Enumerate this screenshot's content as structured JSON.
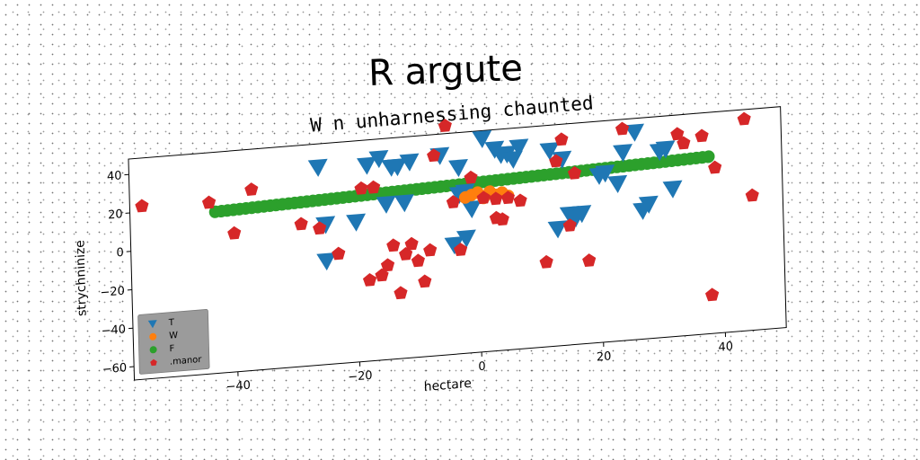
{
  "chart_data": {
    "type": "scatter",
    "title": "R argute",
    "subtitle": "W n unharnessing chaunted",
    "xlabel": "hectare",
    "ylabel": "strychninize",
    "xlim": [
      -57,
      50
    ],
    "ylim": [
      -67,
      48
    ],
    "xticks": [
      -40,
      -20,
      0,
      20,
      40
    ],
    "yticks": [
      40,
      20,
      0,
      -20,
      -40,
      -60
    ],
    "grid": false,
    "legend_position": "lower-left",
    "series": [
      {
        "name": "T",
        "marker": "triangle-down",
        "color": "#1f77b4",
        "points": [
          [
            -26,
            36
          ],
          [
            -25,
            6
          ],
          [
            -25,
            -13
          ],
          [
            -20,
            6
          ],
          [
            -18,
            35
          ],
          [
            -16,
            38
          ],
          [
            -15,
            14
          ],
          [
            -14,
            33
          ],
          [
            -13,
            33
          ],
          [
            -12,
            14
          ],
          [
            -11,
            35
          ],
          [
            -6,
            37
          ],
          [
            -4,
            -10
          ],
          [
            -3,
            16
          ],
          [
            -3,
            30
          ],
          [
            -2,
            17
          ],
          [
            -2,
            -7
          ],
          [
            -1,
            8
          ],
          [
            1,
            44
          ],
          [
            3,
            38
          ],
          [
            4,
            35
          ],
          [
            5,
            35
          ],
          [
            6,
            32
          ],
          [
            7,
            38
          ],
          [
            12,
            35
          ],
          [
            13,
            -6
          ],
          [
            14,
            30
          ],
          [
            15,
            1
          ],
          [
            16,
            -1
          ],
          [
            17,
            1
          ],
          [
            20,
            20
          ],
          [
            21,
            21
          ],
          [
            23,
            15
          ],
          [
            24,
            31
          ],
          [
            26,
            41
          ],
          [
            27,
            0
          ],
          [
            28,
            3
          ],
          [
            30,
            30
          ],
          [
            31,
            31
          ],
          [
            32,
            10
          ]
        ]
      },
      {
        "name": "W",
        "marker": "circle",
        "color": "#ff7f0e",
        "points": [
          [
            -2,
            14
          ],
          [
            -1,
            15
          ],
          [
            0,
            16
          ],
          [
            1,
            13
          ],
          [
            2,
            16
          ],
          [
            3,
            14
          ],
          [
            4,
            15
          ],
          [
            5,
            13
          ]
        ]
      },
      {
        "name": "F",
        "marker": "circle",
        "color": "#2ca02c",
        "x_range": [
          -43,
          38
        ],
        "y_range": [
          17,
          25
        ],
        "count": 82
      },
      {
        "name": ".manor",
        "marker": "pentagon",
        "color": "#d62728",
        "points": [
          [
            -55,
            23
          ],
          [
            -44,
            22
          ],
          [
            -40,
            5
          ],
          [
            -37,
            27
          ],
          [
            -29,
            7
          ],
          [
            -26,
            4
          ],
          [
            -23,
            -10
          ],
          [
            -19,
            23
          ],
          [
            -18,
            -25
          ],
          [
            -17,
            23
          ],
          [
            -16,
            -23
          ],
          [
            -15,
            -18
          ],
          [
            -14,
            -8
          ],
          [
            -13,
            -33
          ],
          [
            -12,
            -13
          ],
          [
            -11,
            -8
          ],
          [
            -10,
            -17
          ],
          [
            -9,
            -28
          ],
          [
            -8,
            -12
          ],
          [
            -7,
            37
          ],
          [
            -5,
            52
          ],
          [
            -4,
            12
          ],
          [
            -3,
            -13
          ],
          [
            -1,
            24
          ],
          [
            1,
            13
          ],
          [
            3,
            12
          ],
          [
            3,
            2
          ],
          [
            4,
            1
          ],
          [
            5,
            12
          ],
          [
            7,
            10
          ],
          [
            11,
            -23
          ],
          [
            13,
            29
          ],
          [
            14,
            40
          ],
          [
            15,
            -5
          ],
          [
            16,
            22
          ],
          [
            18,
            -24
          ],
          [
            24,
            43
          ],
          [
            33,
            38
          ],
          [
            34,
            33
          ],
          [
            37,
            36
          ],
          [
            38,
            -47
          ],
          [
            39,
            19
          ],
          [
            44,
            43
          ],
          [
            45,
            3
          ]
        ]
      }
    ]
  }
}
